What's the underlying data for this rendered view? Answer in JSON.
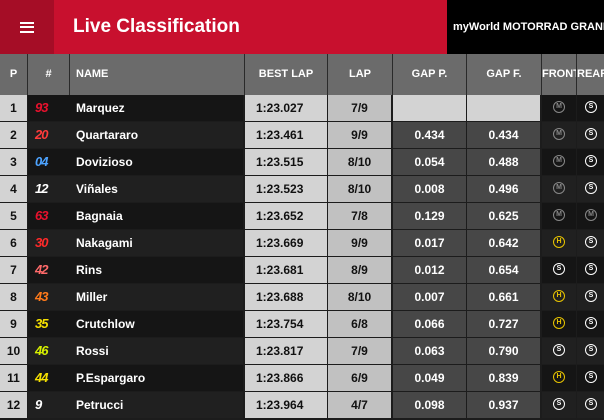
{
  "header": {
    "title": "Live Classification",
    "event": "myWorld MOTORRAD GRAND"
  },
  "columns": {
    "pos": "P",
    "num": "#",
    "name": "NAME",
    "best": "BEST LAP",
    "lap": "LAP",
    "gapp": "GAP P.",
    "gapf": "GAP F.",
    "front": "FRONT",
    "rear": "REAR"
  },
  "rows": [
    {
      "pos": "1",
      "num": "93",
      "num_color": "#e8112d",
      "name": "Marquez",
      "best": "1:23.027",
      "lap": "7/9",
      "gapp": "",
      "gapf": "",
      "front": "M",
      "rear": "S"
    },
    {
      "pos": "2",
      "num": "20",
      "num_color": "#ff3b3b",
      "name": "Quartararo",
      "best": "1:23.461",
      "lap": "9/9",
      "gapp": "0.434",
      "gapf": "0.434",
      "front": "M",
      "rear": "S"
    },
    {
      "pos": "3",
      "num": "04",
      "num_color": "#4da3ff",
      "name": "Dovizioso",
      "best": "1:23.515",
      "lap": "8/10",
      "gapp": "0.054",
      "gapf": "0.488",
      "front": "M",
      "rear": "S"
    },
    {
      "pos": "4",
      "num": "12",
      "num_color": "#ffffff",
      "name": "Viñales",
      "best": "1:23.523",
      "lap": "8/10",
      "gapp": "0.008",
      "gapf": "0.496",
      "front": "M",
      "rear": "S"
    },
    {
      "pos": "5",
      "num": "63",
      "num_color": "#e8112d",
      "name": "Bagnaia",
      "best": "1:23.652",
      "lap": "7/8",
      "gapp": "0.129",
      "gapf": "0.625",
      "front": "M",
      "rear": "M"
    },
    {
      "pos": "6",
      "num": "30",
      "num_color": "#ff2a2a",
      "name": "Nakagami",
      "best": "1:23.669",
      "lap": "9/9",
      "gapp": "0.017",
      "gapf": "0.642",
      "front": "H",
      "rear": "S"
    },
    {
      "pos": "7",
      "num": "42",
      "num_color": "#ff6a6a",
      "name": "Rins",
      "best": "1:23.681",
      "lap": "8/9",
      "gapp": "0.012",
      "gapf": "0.654",
      "front": "S",
      "rear": "S"
    },
    {
      "pos": "8",
      "num": "43",
      "num_color": "#ff7a1a",
      "name": "Miller",
      "best": "1:23.688",
      "lap": "8/10",
      "gapp": "0.007",
      "gapf": "0.661",
      "front": "H",
      "rear": "S"
    },
    {
      "pos": "9",
      "num": "35",
      "num_color": "#f5e000",
      "name": "Crutchlow",
      "best": "1:23.754",
      "lap": "6/8",
      "gapp": "0.066",
      "gapf": "0.727",
      "front": "H",
      "rear": "S"
    },
    {
      "pos": "10",
      "num": "46",
      "num_color": "#d7f000",
      "name": "Rossi",
      "best": "1:23.817",
      "lap": "7/9",
      "gapp": "0.063",
      "gapf": "0.790",
      "front": "S",
      "rear": "S"
    },
    {
      "pos": "11",
      "num": "44",
      "num_color": "#f5e000",
      "name": "P.Espargaro",
      "best": "1:23.866",
      "lap": "6/9",
      "gapp": "0.049",
      "gapf": "0.839",
      "front": "H",
      "rear": "S"
    },
    {
      "pos": "12",
      "num": "9",
      "num_color": "#ffffff",
      "name": "Petrucci",
      "best": "1:23.964",
      "lap": "4/7",
      "gapp": "0.098",
      "gapf": "0.937",
      "front": "S",
      "rear": "S"
    }
  ]
}
